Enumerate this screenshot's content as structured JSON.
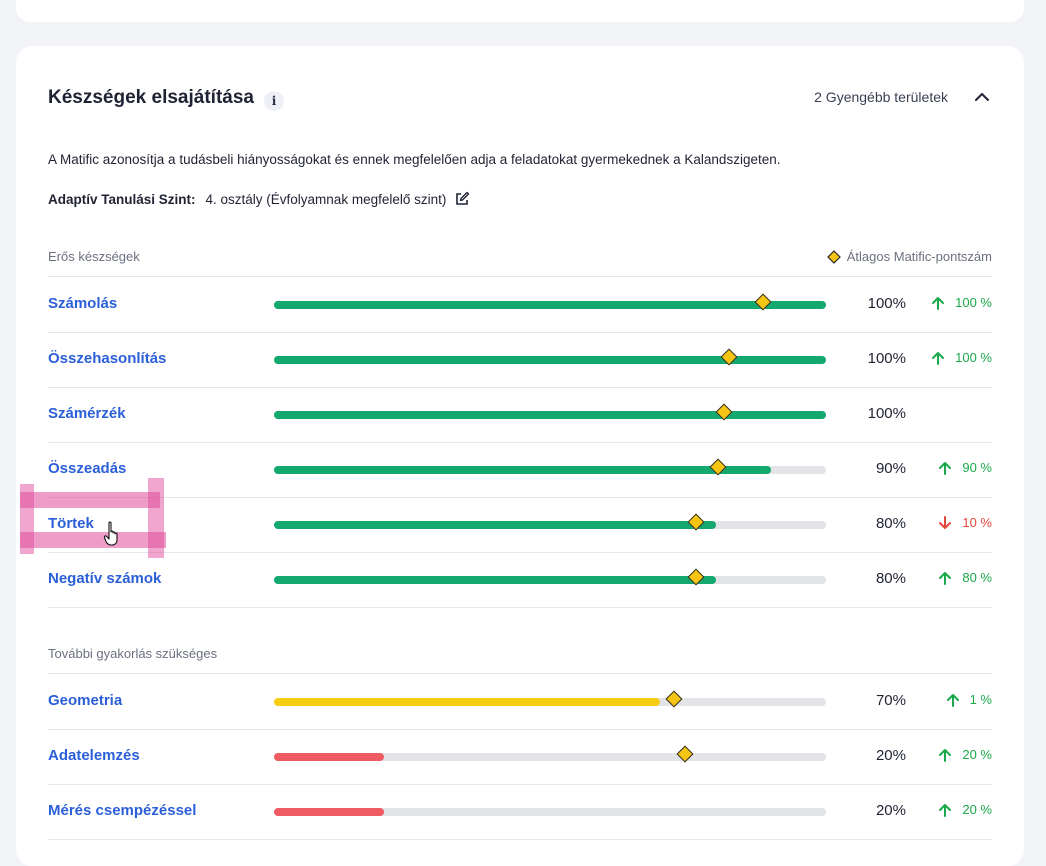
{
  "card": {
    "title": "Készségek elsajátítása",
    "info_icon": "info-icon",
    "weak_areas_link": "2 Gyengébb területek",
    "collapse_icon": "chevron-up-icon",
    "description": "A Matific azonosítja a tudásbeli hiányosságokat és ennek megfelelően adja a feladatokat gyermekednek a Kalandszigeten.",
    "level_label": "Adaptív Tanulási Szint:",
    "level_value": "4. osztály (Évfolyamnak megfelelő szint)",
    "edit_icon": "edit-icon"
  },
  "colors": {
    "link": "#2b5fd9",
    "green": "#12a86e",
    "yellow": "#f6cd13",
    "red": "#ef5b63",
    "up": "#1aa84a",
    "down": "#e4463c",
    "marker": "#f6c514"
  },
  "strong": {
    "heading": "Erős készségek",
    "legend": "Átlagos Matific-pontszám",
    "rows": [
      {
        "name": "Számolás",
        "fill": 1.0,
        "marker": 0.885,
        "pct": "100%",
        "trend": "up",
        "delta": "100 %",
        "color": "green"
      },
      {
        "name": "Összehasonlítás",
        "fill": 1.0,
        "marker": 0.825,
        "pct": "100%",
        "trend": "up",
        "delta": "100 %",
        "color": "green"
      },
      {
        "name": "Számérzék",
        "fill": 1.0,
        "marker": 0.815,
        "pct": "100%",
        "trend": "none",
        "delta": "",
        "color": "green"
      },
      {
        "name": "Összeadás",
        "fill": 0.9,
        "marker": 0.805,
        "pct": "90%",
        "trend": "up",
        "delta": "90 %",
        "color": "green"
      },
      {
        "name": "Törtek",
        "fill": 0.8,
        "marker": 0.765,
        "pct": "80%",
        "trend": "down",
        "delta": "10 %",
        "color": "green"
      },
      {
        "name": "Negatív számok",
        "fill": 0.8,
        "marker": 0.765,
        "pct": "80%",
        "trend": "up",
        "delta": "80 %",
        "color": "green"
      }
    ]
  },
  "weak": {
    "heading": "További gyakorlás szükséges",
    "rows": [
      {
        "name": "Geometria",
        "fill": 0.7,
        "marker": 0.725,
        "pct": "70%",
        "trend": "up",
        "delta": "1 %",
        "color": "yellow"
      },
      {
        "name": "Adatelemzés",
        "fill": 0.2,
        "marker": 0.745,
        "pct": "20%",
        "trend": "up",
        "delta": "20 %",
        "color": "red"
      },
      {
        "name": "Mérés csempézéssel",
        "fill": 0.2,
        "marker": null,
        "pct": "20%",
        "trend": "up",
        "delta": "20 %",
        "color": "red"
      }
    ]
  }
}
